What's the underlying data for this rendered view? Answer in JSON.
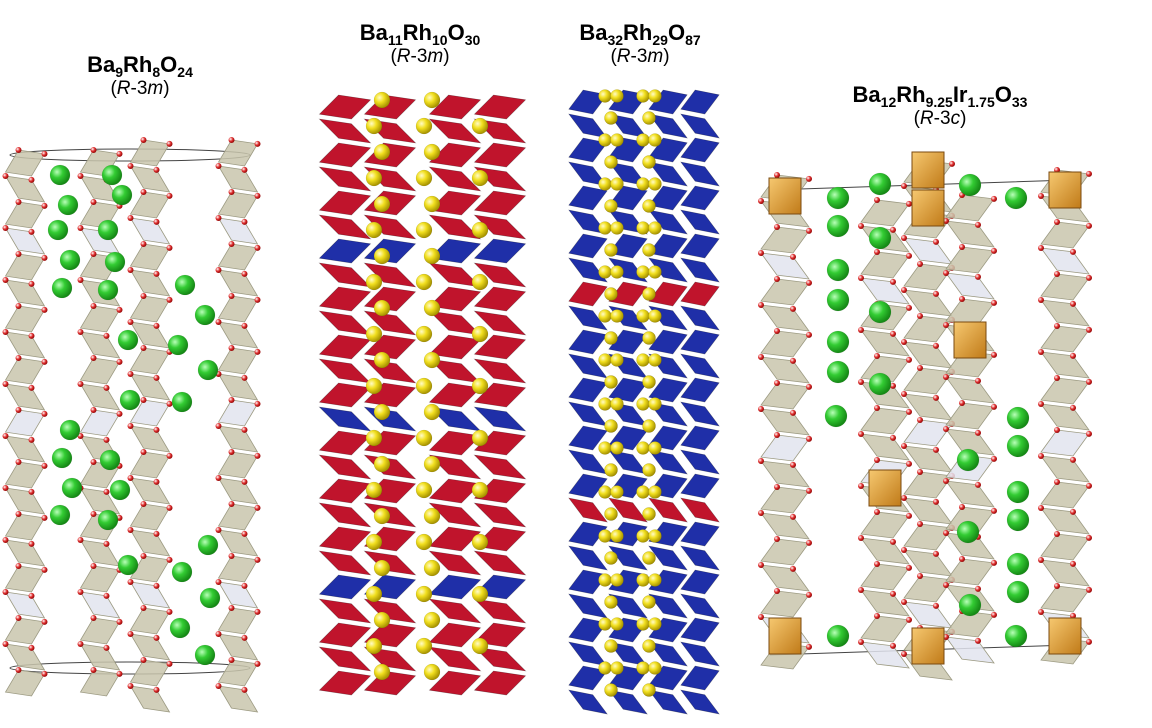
{
  "structures": [
    {
      "formula": [
        {
          "t": "Ba",
          "s": "9"
        },
        {
          "t": "Rh",
          "s": "8"
        },
        {
          "t": "O",
          "s": "24"
        }
      ],
      "space_group": {
        "open": "(",
        "italic_r": "R",
        "mid": "-3",
        "italic_suffix": "m",
        "close": ")"
      }
    },
    {
      "formula": [
        {
          "t": "Ba",
          "s": "11"
        },
        {
          "t": "Rh",
          "s": "10"
        },
        {
          "t": "O",
          "s": "30"
        }
      ],
      "space_group": {
        "open": "(",
        "italic_r": "R",
        "mid": "-3",
        "italic_suffix": "m",
        "close": ")"
      }
    },
    {
      "formula": [
        {
          "t": "Ba",
          "s": "32"
        },
        {
          "t": "Rh",
          "s": "29"
        },
        {
          "t": "O",
          "s": "87"
        }
      ],
      "space_group": {
        "open": "(",
        "italic_r": "R",
        "mid": "-3",
        "italic_suffix": "m",
        "close": ")"
      }
    },
    {
      "formula": [
        {
          "t": "Ba",
          "s": "12"
        },
        {
          "t": "Rh",
          "s": "9.25"
        },
        {
          "t": "Ir",
          "s": "1.75"
        },
        {
          "t": "O",
          "s": "33"
        }
      ],
      "space_group": {
        "open": "(",
        "italic_r": "R",
        "mid": "-3",
        "italic_suffix": "c",
        "close": ")"
      }
    }
  ],
  "colors": {
    "octahedron_gray": "#c9c6ad",
    "oxygen_red": "#d42020",
    "barium_green": "#33cc33",
    "rh_red": "#c0142c",
    "rh_blue": "#1f2fa8",
    "ba_yellow": "#f2e020",
    "ir_orange": "#e8a838"
  }
}
